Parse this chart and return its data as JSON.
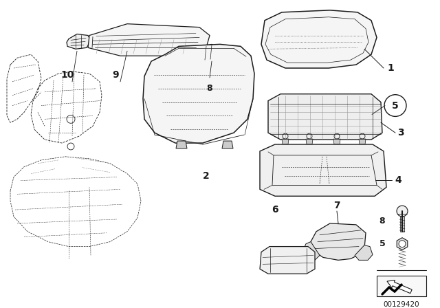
{
  "bg_color": "#ffffff",
  "line_color": "#1a1a1a",
  "diagram_number": "00129420",
  "fig_width": 6.4,
  "fig_height": 4.48,
  "dpi": 100
}
